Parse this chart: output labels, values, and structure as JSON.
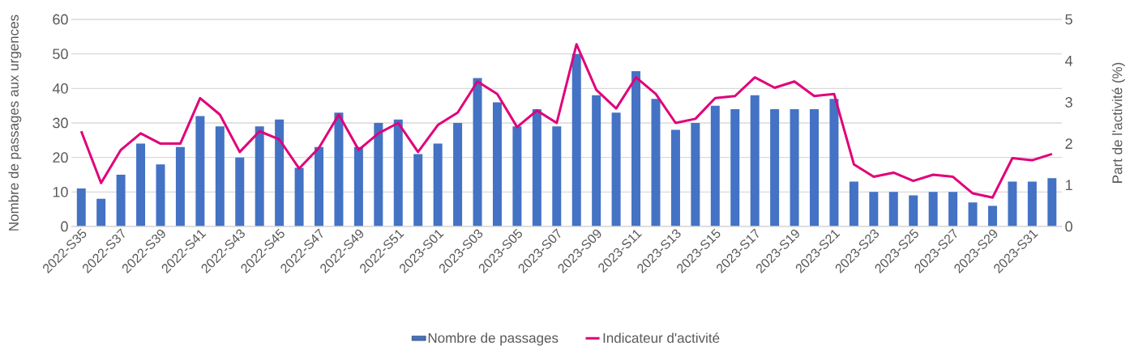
{
  "chart_data": {
    "type": "bar",
    "ylabel": "Nombre de passages aux urgences",
    "y2label": "Part de l'activité (%)",
    "categories": [
      "2022-S35",
      null,
      "2022-S37",
      null,
      "2022-S39",
      null,
      "2022-S41",
      null,
      "2022-S43",
      null,
      "2022-S45",
      null,
      "2022-S47",
      null,
      "2022-S49",
      null,
      "2022-S51",
      null,
      "2023-S01",
      null,
      "2023-S03",
      null,
      "2023-S05",
      null,
      "2023-S07",
      null,
      "2023-S09",
      null,
      "2023-S11",
      null,
      "2023-S13",
      null,
      "2023-S15",
      null,
      "2023-S17",
      null,
      "2023-S19",
      null,
      "2023-S21",
      null,
      "2023-S23",
      null,
      "2023-S25",
      null,
      "2023-S27",
      null,
      "2023-S29",
      null,
      "2023-S31",
      null
    ],
    "series": [
      {
        "name": "Nombre de passages",
        "color": "#4472c4",
        "values": [
          11,
          8,
          15,
          24,
          18,
          23,
          32,
          29,
          20,
          29,
          31,
          17,
          23,
          33,
          23,
          30,
          31,
          21,
          24,
          30,
          43,
          36,
          29,
          34,
          29,
          50,
          38,
          33,
          45,
          37,
          28,
          30,
          35,
          34,
          38,
          34,
          34,
          34,
          37,
          13,
          10,
          10,
          9,
          10,
          10,
          7,
          6,
          13,
          13,
          14
        ]
      },
      {
        "name": "Indicateur d'activité",
        "type": "line",
        "axis": "y2",
        "color": "#e0007a",
        "values": [
          2.3,
          1.05,
          1.85,
          2.25,
          2.0,
          2.0,
          3.1,
          2.7,
          1.8,
          2.3,
          2.1,
          1.4,
          1.9,
          2.7,
          1.85,
          2.25,
          2.5,
          1.8,
          2.45,
          2.75,
          3.5,
          3.2,
          2.4,
          2.8,
          2.5,
          4.4,
          3.3,
          2.85,
          3.6,
          3.2,
          2.5,
          2.6,
          3.1,
          3.15,
          3.6,
          3.35,
          3.5,
          3.15,
          3.2,
          1.5,
          1.2,
          1.3,
          1.1,
          1.25,
          1.2,
          0.8,
          0.7,
          1.65,
          1.6,
          1.75
        ]
      }
    ],
    "ylim": [
      0,
      60
    ],
    "yticks": [
      0,
      10,
      20,
      30,
      40,
      50,
      60
    ],
    "y2lim": [
      0,
      5
    ],
    "y2ticks": [
      0,
      1,
      2,
      3,
      4,
      5
    ],
    "grid": "y",
    "legend": "bottom"
  }
}
